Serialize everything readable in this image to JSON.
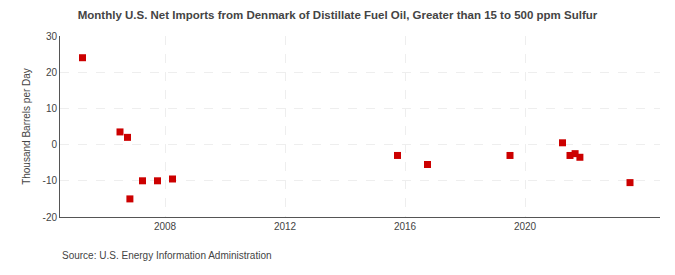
{
  "chart_data": {
    "type": "scatter",
    "title": "Monthly U.S. Net Imports from Denmark of Distillate Fuel Oil, Greater than 15 to 500 ppm Sulfur",
    "ylabel": "Thousand Barrels per Day",
    "annotations": [
      "Source: U.S. Energy Information Administration"
    ],
    "x": [
      2005.25,
      2006.5,
      2006.75,
      2006.83,
      2007.25,
      2007.75,
      2008.25,
      2015.75,
      2016.75,
      2019.5,
      2021.25,
      2021.5,
      2021.67,
      2021.83,
      2023.5
    ],
    "values": [
      24.0,
      3.5,
      2.0,
      -15.0,
      -10.0,
      -10.0,
      -9.5,
      -3.0,
      -5.5,
      -3.0,
      0.5,
      -3.0,
      -2.5,
      -3.5,
      -10.5
    ],
    "color": "#cc0000",
    "marker": "square",
    "xlim": [
      2004.5,
      2024.5
    ],
    "xticks": [
      2008,
      2012,
      2016,
      2020
    ],
    "ylim": [
      -20,
      30
    ],
    "yticks": [
      -20,
      -10,
      0,
      10,
      20,
      30
    ],
    "grid": true
  }
}
